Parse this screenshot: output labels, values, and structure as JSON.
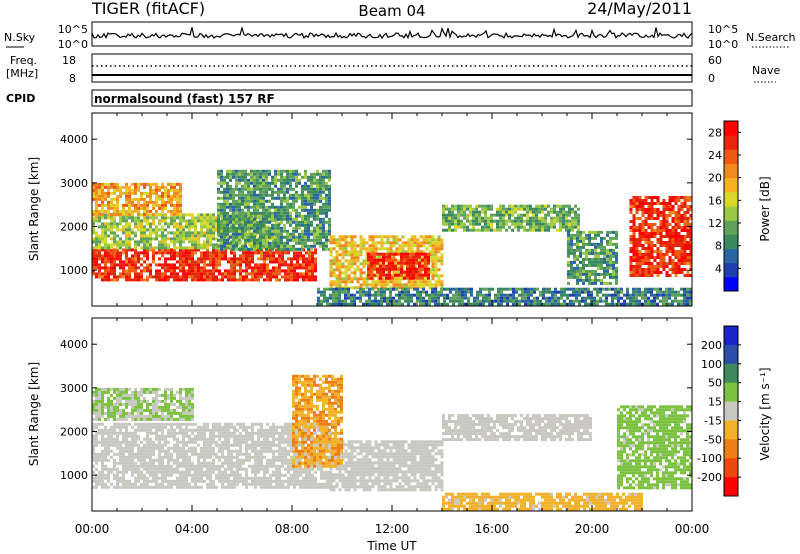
{
  "header": {
    "title": "TIGER (fitACF)",
    "beam": "Beam 04",
    "date": "24/May/2011"
  },
  "side_labels": {
    "nsky": "N.Sky",
    "freq": "Freq.",
    "freq_unit": "[MHz]",
    "cpid": "CPID",
    "nsearch": "N.Search",
    "nave": "Nave",
    "nsky_ticks": [
      "10^5",
      "10^0"
    ],
    "nsearch_ticks": [
      "10^5",
      "10^0"
    ],
    "freq_ticks": [
      "18",
      "8"
    ],
    "nave_ticks": [
      "60",
      "0"
    ]
  },
  "cpid_text": "normalsound (fast) 157 RF",
  "colors": {
    "power": [
      "#0000ff",
      "#1f3faf",
      "#2a66a3",
      "#3b8a5f",
      "#5fa25a",
      "#9cc944",
      "#d8d82c",
      "#f5b323",
      "#f08a1d",
      "#ee5a14",
      "#e6270c",
      "#ff0000"
    ],
    "velocity": [
      "#1c25c8",
      "#2c4eaa",
      "#3f8a5c",
      "#7bc240",
      "#c8c8c0",
      "#f1b12a",
      "#ef7e16",
      "#ea4a0e",
      "#ff0000"
    ]
  },
  "chart_data": [
    {
      "type": "heatmap",
      "name": "power-panel",
      "xlabel": "",
      "ylabel": "Slant Range [km]",
      "x_ticks": [
        "00:00",
        "04:00",
        "08:00",
        "12:00",
        "16:00",
        "20:00",
        "00:00"
      ],
      "x_range_hours": [
        0,
        24
      ],
      "y_ticks": [
        1000,
        2000,
        3000,
        4000
      ],
      "y_range_km": [
        180,
        4600
      ],
      "colorbar": {
        "label": "Power [dB]",
        "ticks": [
          4,
          8,
          12,
          16,
          20,
          24,
          28
        ],
        "range": [
          0,
          30
        ]
      },
      "regions": [
        {
          "t0": 0.0,
          "t1": 9.0,
          "r0": 800,
          "r1": 1500,
          "value": 26
        },
        {
          "t0": 0.0,
          "t1": 7.5,
          "r0": 1500,
          "r1": 2300,
          "value": 14
        },
        {
          "t0": 0.0,
          "t1": 3.5,
          "r0": 2300,
          "r1": 3000,
          "value": 20
        },
        {
          "t0": 5.0,
          "t1": 9.5,
          "r0": 1500,
          "r1": 3300,
          "value": 10
        },
        {
          "t0": 9.5,
          "t1": 14.0,
          "r0": 600,
          "r1": 1800,
          "value": 18
        },
        {
          "t0": 11.0,
          "t1": 13.5,
          "r0": 800,
          "r1": 1400,
          "value": 27
        },
        {
          "t0": 14.0,
          "t1": 19.5,
          "r0": 1900,
          "r1": 2500,
          "value": 12
        },
        {
          "t0": 19.0,
          "t1": 21.0,
          "r0": 700,
          "r1": 1900,
          "value": 10
        },
        {
          "t0": 21.5,
          "t1": 24.0,
          "r0": 900,
          "r1": 2700,
          "value": 26
        },
        {
          "t0": 9.0,
          "t1": 24.0,
          "r0": 200,
          "r1": 600,
          "value": 8
        }
      ]
    },
    {
      "type": "heatmap",
      "name": "velocity-panel",
      "xlabel": "Time UT",
      "ylabel": "Slant Range [km]",
      "x_ticks": [
        "00:00",
        "04:00",
        "08:00",
        "12:00",
        "16:00",
        "20:00",
        "00:00"
      ],
      "x_range_hours": [
        0,
        24
      ],
      "y_ticks": [
        1000,
        2000,
        3000,
        4000
      ],
      "y_range_km": [
        180,
        4600
      ],
      "colorbar": {
        "label": "Velocity [m s⁻¹]",
        "ticks": [
          "200",
          "100",
          "50",
          "15",
          "-15",
          "-50",
          "-100",
          "-200"
        ],
        "range": [
          -250,
          250
        ]
      },
      "regions": [
        {
          "t0": 0.0,
          "t1": 9.5,
          "r0": 700,
          "r1": 2200,
          "value": 0
        },
        {
          "t0": 9.5,
          "t1": 14.0,
          "r0": 700,
          "r1": 1800,
          "value": 0
        },
        {
          "t0": 14.0,
          "t1": 20.0,
          "r0": 1800,
          "r1": 2400,
          "value": 0
        },
        {
          "t0": 8.0,
          "t1": 10.0,
          "r0": 1200,
          "r1": 3300,
          "value": -80
        },
        {
          "t0": 0.0,
          "t1": 4.0,
          "r0": 2300,
          "r1": 3000,
          "value": 30
        },
        {
          "t0": 14.0,
          "t1": 22.0,
          "r0": 200,
          "r1": 600,
          "value": -40
        },
        {
          "t0": 21.0,
          "t1": 24.0,
          "r0": 700,
          "r1": 2600,
          "value": 40
        }
      ]
    }
  ]
}
